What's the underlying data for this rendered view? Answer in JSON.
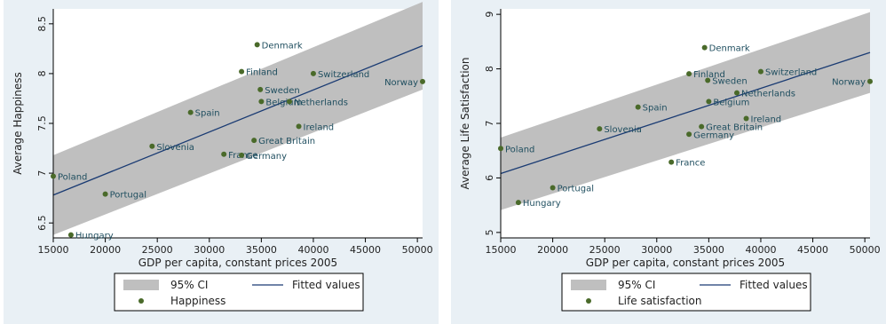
{
  "colors": {
    "panel_bg": "#e9f0f5",
    "plot_bg": "#ffffff",
    "ci_band": "#bfbfbf",
    "fit_line": "#1a3b73",
    "points": "#4a6a2a",
    "point_label": "#1f4e5f"
  },
  "chart_data": [
    {
      "type": "scatter",
      "xlabel": "GDP per capita, constant prices 2005",
      "ylabel": "Average Happiness",
      "xlim": [
        15000,
        50500
      ],
      "ylim": [
        6.35,
        8.65
      ],
      "xticks": [
        15000,
        20000,
        25000,
        30000,
        35000,
        40000,
        45000,
        50000
      ],
      "yticks": [
        6.5,
        7,
        7.5,
        8,
        8.5
      ],
      "xtick_labels": [
        "15000",
        "20000",
        "25000",
        "30000",
        "35000",
        "40000",
        "45000",
        "50000"
      ],
      "ytick_labels": [
        "6.5",
        "7",
        "7.5",
        "8",
        "8.5"
      ],
      "points": [
        {
          "label": "Denmark",
          "x": 34600,
          "y": 8.29
        },
        {
          "label": "Finland",
          "x": 33100,
          "y": 8.02
        },
        {
          "label": "Switzerland",
          "x": 40000,
          "y": 8.0
        },
        {
          "label": "Norway",
          "x": 50500,
          "y": 7.92
        },
        {
          "label": "Sweden",
          "x": 34900,
          "y": 7.84
        },
        {
          "label": "Belgium",
          "x": 35000,
          "y": 7.72
        },
        {
          "label": "Netherlands",
          "x": 37700,
          "y": 7.72
        },
        {
          "label": "Spain",
          "x": 28200,
          "y": 7.61
        },
        {
          "label": "Ireland",
          "x": 38600,
          "y": 7.47
        },
        {
          "label": "Great Britain",
          "x": 34300,
          "y": 7.33
        },
        {
          "label": "Slovenia",
          "x": 24500,
          "y": 7.27
        },
        {
          "label": "France",
          "x": 31400,
          "y": 7.19
        },
        {
          "label": "Germany",
          "x": 33100,
          "y": 7.18
        },
        {
          "label": "Poland",
          "x": 15000,
          "y": 6.97
        },
        {
          "label": "Portugal",
          "x": 20000,
          "y": 6.79
        },
        {
          "label": "Hungary",
          "x": 16700,
          "y": 6.38
        }
      ],
      "fit_line": {
        "x": [
          15000,
          50500
        ],
        "y": [
          6.78,
          8.28
        ]
      },
      "ci_band": {
        "x": [
          15000,
          50500
        ],
        "lower": [
          6.38,
          7.84
        ],
        "upper": [
          7.18,
          8.72
        ]
      },
      "legend": {
        "ci_label": "95% CI",
        "fit_label": "Fitted values",
        "series_label": "Happiness"
      }
    },
    {
      "type": "scatter",
      "xlabel": "GDP per capita, constant prices 2005",
      "ylabel": "Average Life Satisfaction",
      "xlim": [
        15000,
        50500
      ],
      "ylim": [
        4.9,
        9.1
      ],
      "xticks": [
        15000,
        20000,
        25000,
        30000,
        35000,
        40000,
        45000,
        50000
      ],
      "yticks": [
        5,
        6,
        7,
        8,
        9
      ],
      "xtick_labels": [
        "15000",
        "20000",
        "25000",
        "30000",
        "35000",
        "40000",
        "45000",
        "50000"
      ],
      "ytick_labels": [
        "5",
        "6",
        "7",
        "8",
        "9"
      ],
      "points": [
        {
          "label": "Denmark",
          "x": 34600,
          "y": 8.39
        },
        {
          "label": "Switzerland",
          "x": 40000,
          "y": 7.95
        },
        {
          "label": "Finland",
          "x": 33100,
          "y": 7.91
        },
        {
          "label": "Sweden",
          "x": 34900,
          "y": 7.79
        },
        {
          "label": "Norway",
          "x": 50500,
          "y": 7.77
        },
        {
          "label": "Netherlands",
          "x": 37700,
          "y": 7.56
        },
        {
          "label": "Belgium",
          "x": 35000,
          "y": 7.4
        },
        {
          "label": "Spain",
          "x": 28200,
          "y": 7.3
        },
        {
          "label": "Ireland",
          "x": 38600,
          "y": 7.09
        },
        {
          "label": "Great Britain",
          "x": 34300,
          "y": 6.94
        },
        {
          "label": "Slovenia",
          "x": 24500,
          "y": 6.9
        },
        {
          "label": "Germany",
          "x": 33100,
          "y": 6.8
        },
        {
          "label": "Poland",
          "x": 15000,
          "y": 6.54
        },
        {
          "label": "France",
          "x": 31400,
          "y": 6.29
        },
        {
          "label": "Portugal",
          "x": 20000,
          "y": 5.82
        },
        {
          "label": "Hungary",
          "x": 16700,
          "y": 5.55
        }
      ],
      "fit_line": {
        "x": [
          15000,
          50500
        ],
        "y": [
          6.08,
          8.3
        ]
      },
      "ci_band": {
        "x": [
          15000,
          50500
        ],
        "lower": [
          5.41,
          7.56
        ],
        "upper": [
          6.74,
          9.04
        ]
      },
      "legend": {
        "ci_label": "95% CI",
        "fit_label": "Fitted values",
        "series_label": "Life satisfaction"
      }
    }
  ]
}
